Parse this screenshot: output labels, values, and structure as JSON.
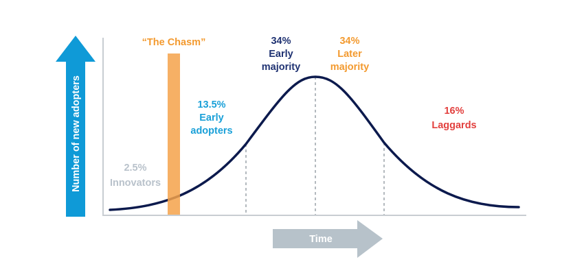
{
  "diagram": {
    "y_axis_label": "Number of new adopters",
    "x_axis_label": "Time",
    "chasm_label": "“The Chasm”",
    "segments": [
      {
        "percent": "2.5%",
        "name": "Innovators"
      },
      {
        "percent": "13.5%",
        "name_line1": "Early",
        "name_line2": "adopters"
      },
      {
        "percent": "34%",
        "name_line1": "Early",
        "name_line2": "majority"
      },
      {
        "percent": "34%",
        "name_line1": "Later",
        "name_line2": "majority"
      },
      {
        "percent": "16%",
        "name": "Laggards"
      }
    ],
    "colors": {
      "y_arrow": "#0f9ad7",
      "x_arrow": "#b7c2ca",
      "curve": "#0c1a4d",
      "chasm": "#f5a24a",
      "axis": "#c8cdd2",
      "innovators": "#b9c2cb",
      "early_adopters": "#1aa0d8",
      "early_majority": "#1f3272",
      "later_majority": "#f39a2f",
      "laggards": "#e2403e"
    }
  }
}
